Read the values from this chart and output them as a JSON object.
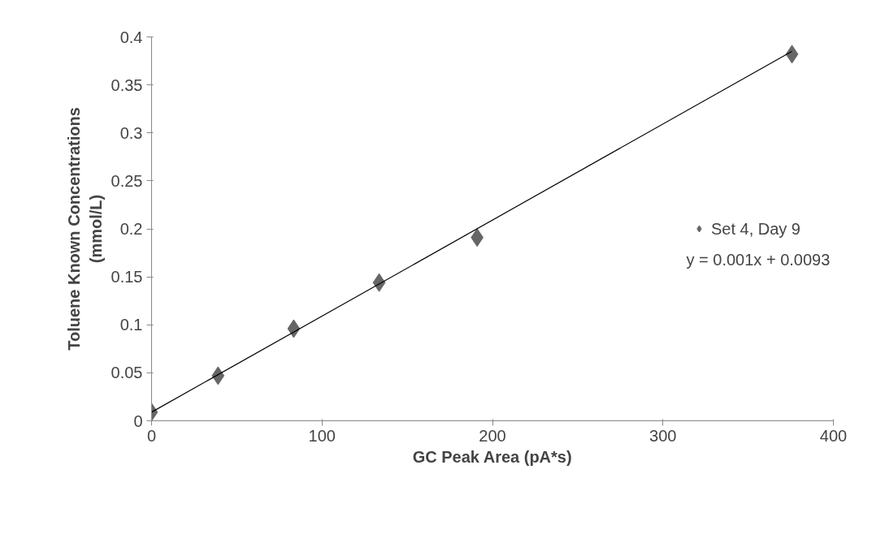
{
  "chart_data": {
    "type": "scatter",
    "xlabel": "GC Peak Area (pA*s)",
    "ylabel": "Toluene Known Concentrations\n(mmol/L)",
    "x": [
      0,
      39,
      83.4,
      133.5,
      191,
      375.7
    ],
    "series": [
      {
        "name": "Set 4, Day 9",
        "color": "#666666",
        "values": [
          0.009,
          0.047,
          0.096,
          0.144,
          0.191,
          0.382
        ]
      },
      {
        "type": "line",
        "marker": "none",
        "color": "#000000",
        "x": [
          0,
          375.7
        ],
        "values": [
          0.009,
          0.385
        ]
      }
    ],
    "xlim": [
      0,
      400
    ],
    "xticks": [
      0,
      100,
      200,
      300,
      400
    ],
    "ylim": [
      0,
      0.4
    ],
    "yticks": [
      0,
      0.05,
      0.1,
      0.15,
      0.2,
      0.25,
      0.3,
      0.35,
      0.4
    ],
    "annotations": [
      "y = 0.001x + 0.0093"
    ],
    "marker": "diamond",
    "grid": false,
    "legend": "right"
  }
}
